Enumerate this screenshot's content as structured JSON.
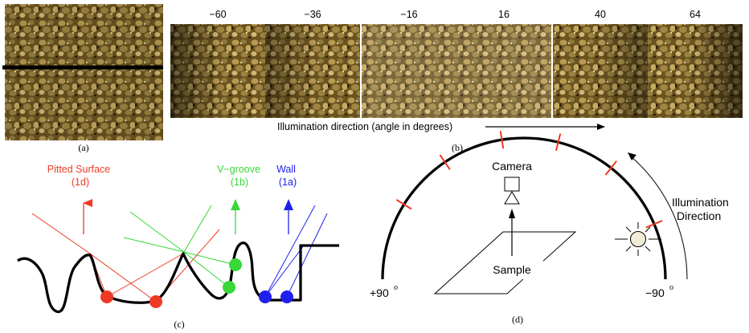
{
  "panel_a": {
    "caption": "(a)"
  },
  "panel_b": {
    "caption": "(b)",
    "angles": [
      "−60",
      "−36",
      "−16",
      "16",
      "40",
      "64"
    ],
    "axis_label": "Illumination direction (angle in degrees)"
  },
  "panel_c": {
    "caption": "(c)",
    "pitted_title": "Pitted Surface",
    "pitted_ref": "(1d)",
    "vgroove_title": "V−groove",
    "vgroove_ref": "(1b)",
    "wall_title": "Wall",
    "wall_ref": "(1a)",
    "colors": {
      "pitted": "#ee3a24",
      "vgroove": "#37d837",
      "wall": "#2020ee"
    }
  },
  "panel_d": {
    "caption": "(d)",
    "camera_label": "Camera",
    "sample_label": "Sample",
    "illum_line1": "Illumination",
    "illum_line2": "Direction",
    "left_angle": "+90",
    "right_angle": "−90",
    "degree_mark": "o",
    "tick_color": "#ee3a24"
  }
}
